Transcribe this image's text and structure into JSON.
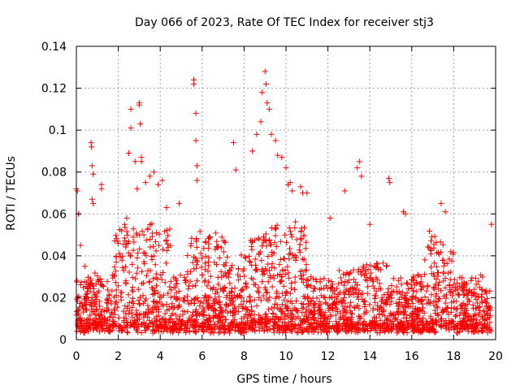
{
  "chart_data": {
    "type": "scatter",
    "title": "Day 066 of 2023, Rate Of TEC Index for receiver stj3",
    "xlabel": "GPS time / hours",
    "ylabel": "ROTI / TECUs",
    "xlim": [
      0,
      20
    ],
    "ylim": [
      0,
      0.14
    ],
    "xticks": [
      0,
      2,
      4,
      6,
      8,
      10,
      12,
      14,
      16,
      18,
      20
    ],
    "xtick_labels": [
      "0",
      "2",
      "4",
      "6",
      "8",
      "10",
      "12",
      "14",
      "16",
      "18",
      "20"
    ],
    "yticks": [
      0,
      0.02,
      0.04,
      0.06,
      0.08,
      0.1,
      0.12,
      0.14
    ],
    "ytick_labels": [
      "0",
      "0.02",
      "0.04",
      "0.06",
      "0.08",
      "0.1",
      "0.12",
      "0.14"
    ],
    "grid": true,
    "marker": "+",
    "color": "#ff0000",
    "series": [
      {
        "name": "ROTI",
        "x_range": [
          0.0,
          19.8
        ],
        "points": [
          [
            0.0,
            0.072
          ],
          [
            0.05,
            0.071
          ],
          [
            0.1,
            0.06
          ],
          [
            0.2,
            0.045
          ],
          [
            0.4,
            0.035
          ],
          [
            0.7,
            0.094
          ],
          [
            0.72,
            0.092
          ],
          [
            0.75,
            0.083
          ],
          [
            0.8,
            0.079
          ],
          [
            0.75,
            0.067
          ],
          [
            0.8,
            0.065
          ],
          [
            1.2,
            0.074
          ],
          [
            1.2,
            0.072
          ],
          [
            2.0,
            0.046
          ],
          [
            2.3,
            0.055
          ],
          [
            2.4,
            0.058
          ],
          [
            2.5,
            0.089
          ],
          [
            2.6,
            0.101
          ],
          [
            2.6,
            0.11
          ],
          [
            2.8,
            0.085
          ],
          [
            2.9,
            0.072
          ],
          [
            3.0,
            0.113
          ],
          [
            3.0,
            0.112
          ],
          [
            3.05,
            0.103
          ],
          [
            3.1,
            0.087
          ],
          [
            3.1,
            0.085
          ],
          [
            3.3,
            0.075
          ],
          [
            3.5,
            0.078
          ],
          [
            3.7,
            0.08
          ],
          [
            3.9,
            0.074
          ],
          [
            4.1,
            0.076
          ],
          [
            4.3,
            0.063
          ],
          [
            4.9,
            0.065
          ],
          [
            5.6,
            0.124
          ],
          [
            5.6,
            0.122
          ],
          [
            5.7,
            0.108
          ],
          [
            5.7,
            0.095
          ],
          [
            5.75,
            0.083
          ],
          [
            5.75,
            0.076
          ],
          [
            7.5,
            0.094
          ],
          [
            7.6,
            0.081
          ],
          [
            8.4,
            0.09
          ],
          [
            8.6,
            0.098
          ],
          [
            8.8,
            0.104
          ],
          [
            8.85,
            0.118
          ],
          [
            9.0,
            0.128
          ],
          [
            9.05,
            0.122
          ],
          [
            9.1,
            0.113
          ],
          [
            9.2,
            0.11
          ],
          [
            9.3,
            0.098
          ],
          [
            9.5,
            0.095
          ],
          [
            9.6,
            0.088
          ],
          [
            9.8,
            0.087
          ],
          [
            10.0,
            0.082
          ],
          [
            10.1,
            0.074
          ],
          [
            10.2,
            0.075
          ],
          [
            10.3,
            0.071
          ],
          [
            10.7,
            0.073
          ],
          [
            10.8,
            0.07
          ],
          [
            11.0,
            0.07
          ],
          [
            12.1,
            0.058
          ],
          [
            12.8,
            0.071
          ],
          [
            13.4,
            0.082
          ],
          [
            13.5,
            0.085
          ],
          [
            13.6,
            0.078
          ],
          [
            14.0,
            0.055
          ],
          [
            14.9,
            0.077
          ],
          [
            14.95,
            0.075
          ],
          [
            15.6,
            0.061
          ],
          [
            15.7,
            0.06
          ],
          [
            17.4,
            0.065
          ],
          [
            17.6,
            0.061
          ],
          [
            19.8,
            0.055
          ]
        ]
      }
    ]
  }
}
